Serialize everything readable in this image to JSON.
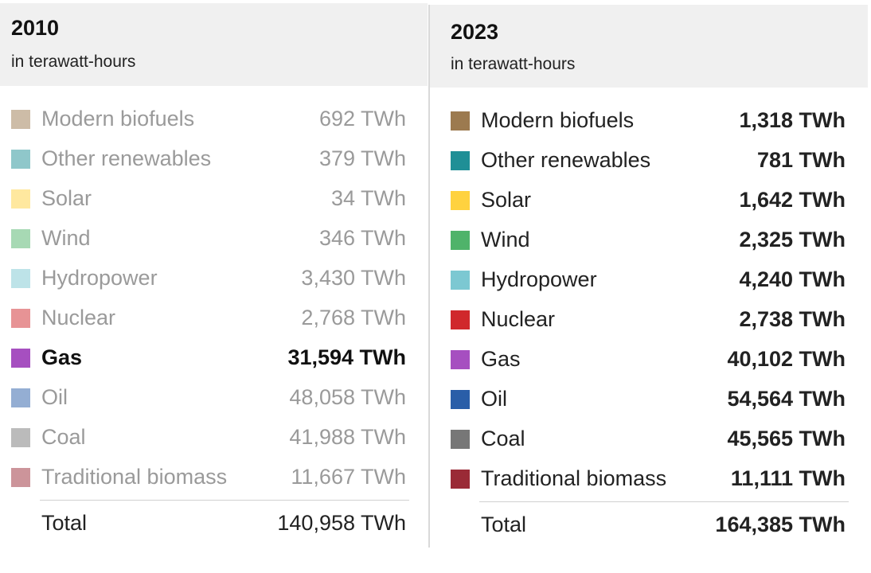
{
  "chart_data": [
    {
      "type": "table",
      "title": "2010",
      "subtitle": "in terawatt-hours",
      "highlighted": "Gas",
      "rows": [
        {
          "label": "Modern biofuels",
          "value": "692 TWh",
          "color": "#9c7a4f"
        },
        {
          "label": "Other renewables",
          "value": "379 TWh",
          "color": "#1f8f96"
        },
        {
          "label": "Solar",
          "value": "34 TWh",
          "color": "#ffd23f"
        },
        {
          "label": "Wind",
          "value": "346 TWh",
          "color": "#4fb36a"
        },
        {
          "label": "Hydropower",
          "value": "3,430 TWh",
          "color": "#7cc8d2"
        },
        {
          "label": "Nuclear",
          "value": "2,768 TWh",
          "color": "#d0282c"
        },
        {
          "label": "Gas",
          "value": "31,594 TWh",
          "color": "#a64fc0"
        },
        {
          "label": "Oil",
          "value": "48,058 TWh",
          "color": "#2a5ea8"
        },
        {
          "label": "Coal",
          "value": "41,988 TWh",
          "color": "#777777"
        },
        {
          "label": "Traditional biomass",
          "value": "11,667 TWh",
          "color": "#9a2a36"
        }
      ],
      "total_label": "Total",
      "total_value": "140,958 TWh"
    },
    {
      "type": "table",
      "title": "2023",
      "subtitle": "in terawatt-hours",
      "highlighted": "",
      "rows": [
        {
          "label": "Modern biofuels",
          "value": "1,318 TWh",
          "color": "#9c7a4f"
        },
        {
          "label": "Other renewables",
          "value": "781 TWh",
          "color": "#1f8f96"
        },
        {
          "label": "Solar",
          "value": "1,642 TWh",
          "color": "#ffd23f"
        },
        {
          "label": "Wind",
          "value": "2,325 TWh",
          "color": "#4fb36a"
        },
        {
          "label": "Hydropower",
          "value": "4,240 TWh",
          "color": "#7cc8d2"
        },
        {
          "label": "Nuclear",
          "value": "2,738 TWh",
          "color": "#d0282c"
        },
        {
          "label": "Gas",
          "value": "40,102 TWh",
          "color": "#a64fc0"
        },
        {
          "label": "Oil",
          "value": "54,564 TWh",
          "color": "#2a5ea8"
        },
        {
          "label": "Coal",
          "value": "45,565 TWh",
          "color": "#777777"
        },
        {
          "label": "Traditional biomass",
          "value": "11,111 TWh",
          "color": "#9a2a36"
        }
      ],
      "total_label": "Total",
      "total_value": "164,385 TWh"
    }
  ]
}
